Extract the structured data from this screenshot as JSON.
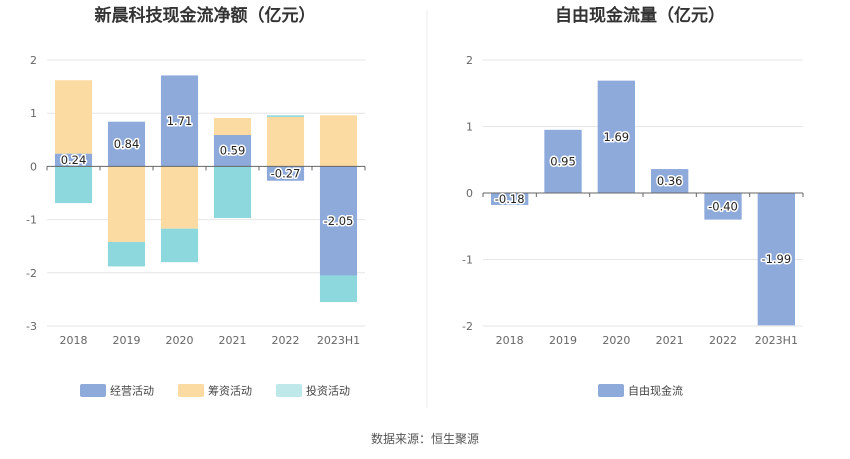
{
  "colors": {
    "operating": "#8eaadb",
    "financing": "#fcdba3",
    "investing": "#8dd8dd",
    "investing_legend": "#bfe8ea",
    "free_cash_flow": "#8eaadb",
    "grid": "#e6e6e6",
    "axis": "#666666"
  },
  "source_text": "数据来源：恒生聚源",
  "chart_data": [
    {
      "type": "bar",
      "stacked": true,
      "title": "新晨科技现金流净额（亿元）",
      "categories": [
        "2018",
        "2019",
        "2020",
        "2021",
        "2022",
        "2023H1"
      ],
      "ylim": [
        -3,
        2
      ],
      "yticks": [
        2,
        1,
        0,
        -1,
        -2,
        -3
      ],
      "series": [
        {
          "name": "经营活动",
          "key": "operating",
          "values": [
            0.24,
            0.84,
            1.71,
            0.59,
            -0.27,
            -2.05
          ],
          "show_labels": true
        },
        {
          "name": "筹资活动",
          "key": "financing",
          "values": [
            1.38,
            -1.42,
            -1.17,
            0.32,
            0.93,
            0.96
          ],
          "show_labels": false
        },
        {
          "name": "投资活动",
          "key": "investing",
          "values": [
            -0.69,
            -0.46,
            -0.63,
            -0.97,
            0.03,
            -0.5
          ],
          "show_labels": false
        }
      ],
      "legend": [
        "经营活动",
        "筹资活动",
        "投资活动"
      ]
    },
    {
      "type": "bar",
      "stacked": false,
      "title": "自由现金流量（亿元）",
      "categories": [
        "2018",
        "2019",
        "2020",
        "2021",
        "2022",
        "2023H1"
      ],
      "ylim": [
        -2,
        2
      ],
      "yticks": [
        2,
        1,
        0,
        -1,
        -2
      ],
      "series": [
        {
          "name": "自由现金流",
          "key": "free_cash_flow",
          "values": [
            -0.18,
            0.95,
            1.69,
            0.36,
            -0.4,
            -1.99
          ],
          "show_labels": true
        }
      ],
      "legend": [
        "自由现金流"
      ]
    }
  ]
}
